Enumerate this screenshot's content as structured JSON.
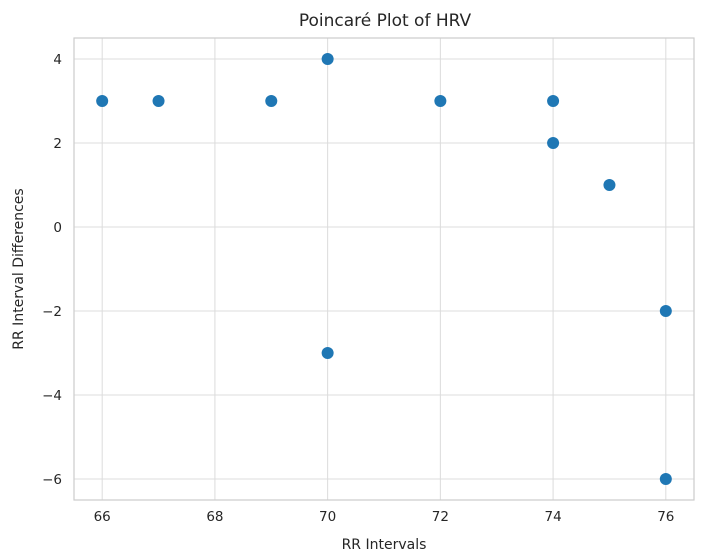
{
  "chart_data": {
    "type": "scatter",
    "title": "Poincaré Plot of HRV",
    "xlabel": "RR Intervals",
    "ylabel": "RR Interval Differences",
    "xlim": [
      65.5,
      76.5
    ],
    "ylim": [
      -6.5,
      4.5
    ],
    "xticks": [
      66,
      68,
      70,
      72,
      74,
      76
    ],
    "xtick_labels": [
      "66",
      "68",
      "70",
      "72",
      "74",
      "76"
    ],
    "yticks": [
      -6,
      -4,
      -2,
      0,
      2,
      4
    ],
    "ytick_labels": [
      "−6",
      "−4",
      "−2",
      "0",
      "2",
      "4"
    ],
    "grid": true,
    "legend": "none",
    "marker_color": "#1f77b4",
    "series": [
      {
        "points": [
          {
            "x": 66,
            "y": 3
          },
          {
            "x": 67,
            "y": 3
          },
          {
            "x": 69,
            "y": 3
          },
          {
            "x": 70,
            "y": 4
          },
          {
            "x": 72,
            "y": 3
          },
          {
            "x": 74,
            "y": 3
          },
          {
            "x": 74,
            "y": 2
          },
          {
            "x": 75,
            "y": 1
          },
          {
            "x": 70,
            "y": -3
          },
          {
            "x": 76,
            "y": -2
          },
          {
            "x": 76,
            "y": -6
          }
        ]
      }
    ]
  }
}
